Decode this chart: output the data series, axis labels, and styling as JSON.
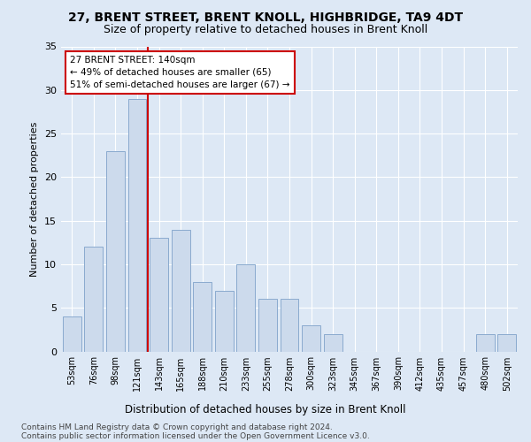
{
  "title": "27, BRENT STREET, BRENT KNOLL, HIGHBRIDGE, TA9 4DT",
  "subtitle": "Size of property relative to detached houses in Brent Knoll",
  "xlabel": "Distribution of detached houses by size in Brent Knoll",
  "ylabel": "Number of detached properties",
  "footnote1": "Contains HM Land Registry data © Crown copyright and database right 2024.",
  "footnote2": "Contains public sector information licensed under the Open Government Licence v3.0.",
  "bar_labels": [
    "53sqm",
    "76sqm",
    "98sqm",
    "121sqm",
    "143sqm",
    "165sqm",
    "188sqm",
    "210sqm",
    "233sqm",
    "255sqm",
    "278sqm",
    "300sqm",
    "323sqm",
    "345sqm",
    "367sqm",
    "390sqm",
    "412sqm",
    "435sqm",
    "457sqm",
    "480sqm",
    "502sqm"
  ],
  "bar_values": [
    4,
    12,
    23,
    29,
    13,
    14,
    8,
    7,
    10,
    6,
    6,
    3,
    2,
    0,
    0,
    0,
    0,
    0,
    0,
    2,
    2
  ],
  "bar_color": "#ccdaec",
  "bar_edge_color": "#8aaace",
  "vline_color": "#cc0000",
  "annotation_text": "27 BRENT STREET: 140sqm\n← 49% of detached houses are smaller (65)\n51% of semi-detached houses are larger (67) →",
  "annotation_box_color": "#ffffff",
  "annotation_box_edge": "#cc0000",
  "ylim": [
    0,
    35
  ],
  "yticks": [
    0,
    5,
    10,
    15,
    20,
    25,
    30,
    35
  ],
  "bg_color": "#dde8f5",
  "plot_bg_color": "#dde8f5",
  "grid_color": "#ffffff",
  "title_fontsize": 10,
  "subtitle_fontsize": 9
}
